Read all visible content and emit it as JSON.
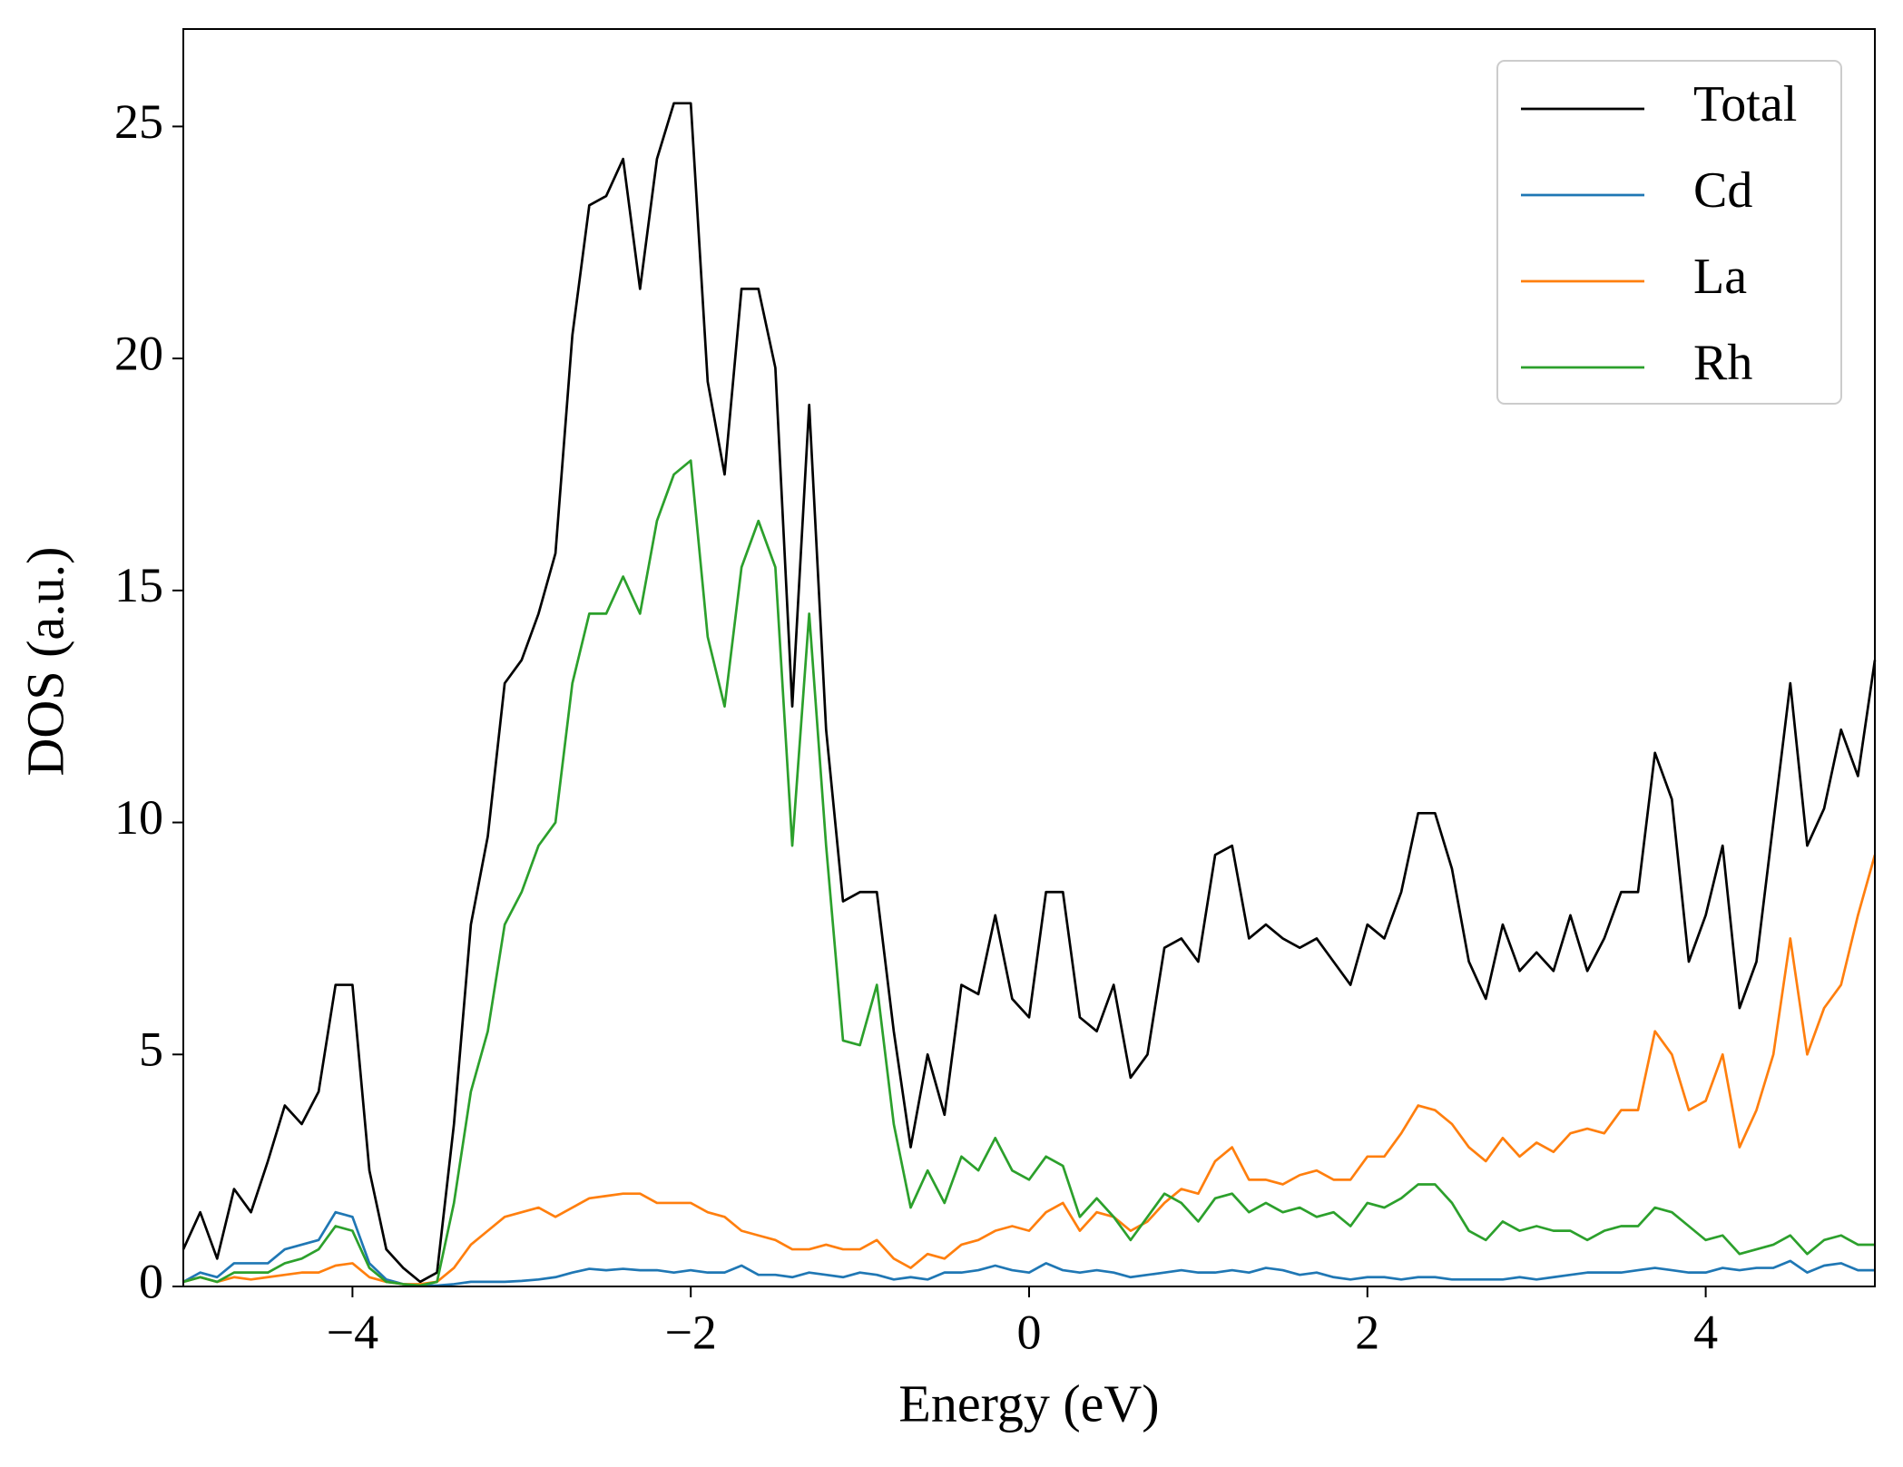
{
  "chart_data": {
    "type": "line",
    "xlabel": "Energy (eV)",
    "ylabel": "DOS (a.u.)",
    "x": [
      -5,
      -4.9,
      -4.8,
      -4.7,
      -4.6,
      -4.5,
      -4.4,
      -4.3,
      -4.2,
      -4.1,
      -4,
      -3.9,
      -3.8,
      -3.7,
      -3.6,
      -3.5,
      -3.4,
      -3.3,
      -3.2,
      -3.1,
      -3,
      -2.9,
      -2.8,
      -2.7,
      -2.6,
      -2.5,
      -2.4,
      -2.3,
      -2.2,
      -2.1,
      -2,
      -1.9,
      -1.8,
      -1.7,
      -1.6,
      -1.5,
      -1.4,
      -1.3,
      -1.2,
      -1.1,
      -1,
      -0.9,
      -0.8,
      -0.7,
      -0.6,
      -0.5,
      -0.4,
      -0.3,
      -0.2,
      -0.1,
      0,
      0.1,
      0.2,
      0.3,
      0.4,
      0.5,
      0.6,
      0.7,
      0.8,
      0.9,
      1,
      1.1,
      1.2,
      1.3,
      1.4,
      1.5,
      1.6,
      1.7,
      1.8,
      1.9,
      2,
      2.1,
      2.2,
      2.3,
      2.4,
      2.5,
      2.6,
      2.7,
      2.8,
      2.9,
      3,
      3.1,
      3.2,
      3.3,
      3.4,
      3.5,
      3.6,
      3.7,
      3.8,
      3.9,
      4,
      4.1,
      4.2,
      4.3,
      4.4,
      4.5,
      4.6,
      4.7,
      4.8,
      4.9,
      5
    ],
    "series": [
      {
        "name": "Total",
        "color": "#000000",
        "values": [
          0.8,
          1.6,
          0.6,
          2.1,
          1.6,
          2.7,
          3.9,
          3.5,
          4.2,
          6.5,
          6.5,
          2.5,
          0.8,
          0.4,
          0.1,
          0.3,
          3.5,
          7.8,
          9.7,
          13,
          13.5,
          14.5,
          15.8,
          20.5,
          23.3,
          23.5,
          24.3,
          21.5,
          24.3,
          25.5,
          25.5,
          19.5,
          17.5,
          21.5,
          21.5,
          19.8,
          12.5,
          19,
          12,
          8.3,
          8.5,
          8.5,
          5.5,
          3,
          5,
          3.7,
          6.5,
          6.3,
          8.0,
          6.2,
          5.8,
          8.5,
          8.5,
          5.8,
          5.5,
          6.5,
          4.5,
          5,
          7.3,
          7.5,
          7,
          9.3,
          9.5,
          7.5,
          7.8,
          7.5,
          7.3,
          7.5,
          7,
          6.5,
          7.8,
          7.5,
          8.5,
          10.2,
          10.2,
          9,
          7,
          6.2,
          7.8,
          6.8,
          7.2,
          6.8,
          8,
          6.8,
          7.5,
          8.5,
          8.5,
          11.5,
          10.5,
          7,
          8,
          9.5,
          6,
          7,
          10,
          13,
          9.5,
          10.3,
          12,
          11,
          13.5
        ]
      },
      {
        "name": "Cd",
        "color": "#1f77b4",
        "values": [
          0.1,
          0.3,
          0.2,
          0.5,
          0.5,
          0.5,
          0.8,
          0.9,
          1.0,
          1.6,
          1.5,
          0.5,
          0.15,
          0.05,
          0.02,
          0.02,
          0.05,
          0.1,
          0.1,
          0.1,
          0.12,
          0.15,
          0.2,
          0.3,
          0.38,
          0.35,
          0.38,
          0.35,
          0.35,
          0.3,
          0.35,
          0.3,
          0.3,
          0.45,
          0.25,
          0.25,
          0.2,
          0.3,
          0.25,
          0.2,
          0.3,
          0.25,
          0.15,
          0.2,
          0.15,
          0.3,
          0.3,
          0.35,
          0.45,
          0.35,
          0.3,
          0.5,
          0.35,
          0.3,
          0.35,
          0.3,
          0.2,
          0.25,
          0.3,
          0.35,
          0.3,
          0.3,
          0.35,
          0.3,
          0.4,
          0.35,
          0.25,
          0.3,
          0.2,
          0.15,
          0.2,
          0.2,
          0.15,
          0.2,
          0.2,
          0.15,
          0.15,
          0.15,
          0.15,
          0.2,
          0.15,
          0.2,
          0.25,
          0.3,
          0.3,
          0.3,
          0.35,
          0.4,
          0.35,
          0.3,
          0.3,
          0.4,
          0.35,
          0.4,
          0.4,
          0.55,
          0.3,
          0.45,
          0.5,
          0.35,
          0.35
        ]
      },
      {
        "name": "La",
        "color": "#ff7f0e",
        "values": [
          0.1,
          0.2,
          0.1,
          0.2,
          0.15,
          0.2,
          0.25,
          0.3,
          0.3,
          0.45,
          0.5,
          0.2,
          0.1,
          0.05,
          0.05,
          0.1,
          0.4,
          0.9,
          1.2,
          1.5,
          1.6,
          1.7,
          1.5,
          1.7,
          1.9,
          1.95,
          2.0,
          2.0,
          1.8,
          1.8,
          1.8,
          1.6,
          1.5,
          1.2,
          1.1,
          1.0,
          0.8,
          0.8,
          0.9,
          0.8,
          0.8,
          1.0,
          0.6,
          0.4,
          0.7,
          0.6,
          0.9,
          1.0,
          1.2,
          1.3,
          1.2,
          1.6,
          1.8,
          1.2,
          1.6,
          1.5,
          1.2,
          1.4,
          1.8,
          2.1,
          2.0,
          2.7,
          3.0,
          2.3,
          2.3,
          2.2,
          2.4,
          2.5,
          2.3,
          2.3,
          2.8,
          2.8,
          3.3,
          3.9,
          3.8,
          3.5,
          3.0,
          2.7,
          3.2,
          2.8,
          3.1,
          2.9,
          3.3,
          3.4,
          3.3,
          3.8,
          3.8,
          5.5,
          5.0,
          3.8,
          4.0,
          5.0,
          3.0,
          3.8,
          5.0,
          7.5,
          5.0,
          6.0,
          6.5,
          8.0,
          9.3
        ]
      },
      {
        "name": "Rh",
        "color": "#2ca02c",
        "values": [
          0.1,
          0.2,
          0.1,
          0.3,
          0.3,
          0.3,
          0.5,
          0.6,
          0.8,
          1.3,
          1.2,
          0.4,
          0.1,
          0.05,
          0.02,
          0.1,
          1.8,
          4.2,
          5.5,
          7.8,
          8.5,
          9.5,
          10,
          13,
          14.5,
          14.5,
          15.3,
          14.5,
          16.5,
          17.5,
          17.8,
          14,
          12.5,
          15.5,
          16.5,
          15.5,
          9.5,
          14.5,
          9.5,
          5.3,
          5.2,
          6.5,
          3.5,
          1.7,
          2.5,
          1.8,
          2.8,
          2.5,
          3.2,
          2.5,
          2.3,
          2.8,
          2.6,
          1.5,
          1.9,
          1.5,
          1.0,
          1.5,
          2.0,
          1.8,
          1.4,
          1.9,
          2.0,
          1.6,
          1.8,
          1.6,
          1.7,
          1.5,
          1.6,
          1.3,
          1.8,
          1.7,
          1.9,
          2.2,
          2.2,
          1.8,
          1.2,
          1.0,
          1.4,
          1.2,
          1.3,
          1.2,
          1.2,
          1.0,
          1.2,
          1.3,
          1.3,
          1.7,
          1.6,
          1.3,
          1.0,
          1.1,
          0.7,
          0.8,
          0.9,
          1.1,
          0.7,
          1.0,
          1.1,
          0.9,
          0.9
        ]
      }
    ],
    "xlim": [
      -5,
      5
    ],
    "ylim": [
      0,
      27.1
    ],
    "xticks": [
      {
        "value": -4,
        "label": "−4"
      },
      {
        "value": -2,
        "label": "−2"
      },
      0,
      2,
      4
    ],
    "yticks": [
      0,
      5,
      10,
      15,
      20,
      25
    ],
    "legend": "upper right",
    "grid": false
  }
}
